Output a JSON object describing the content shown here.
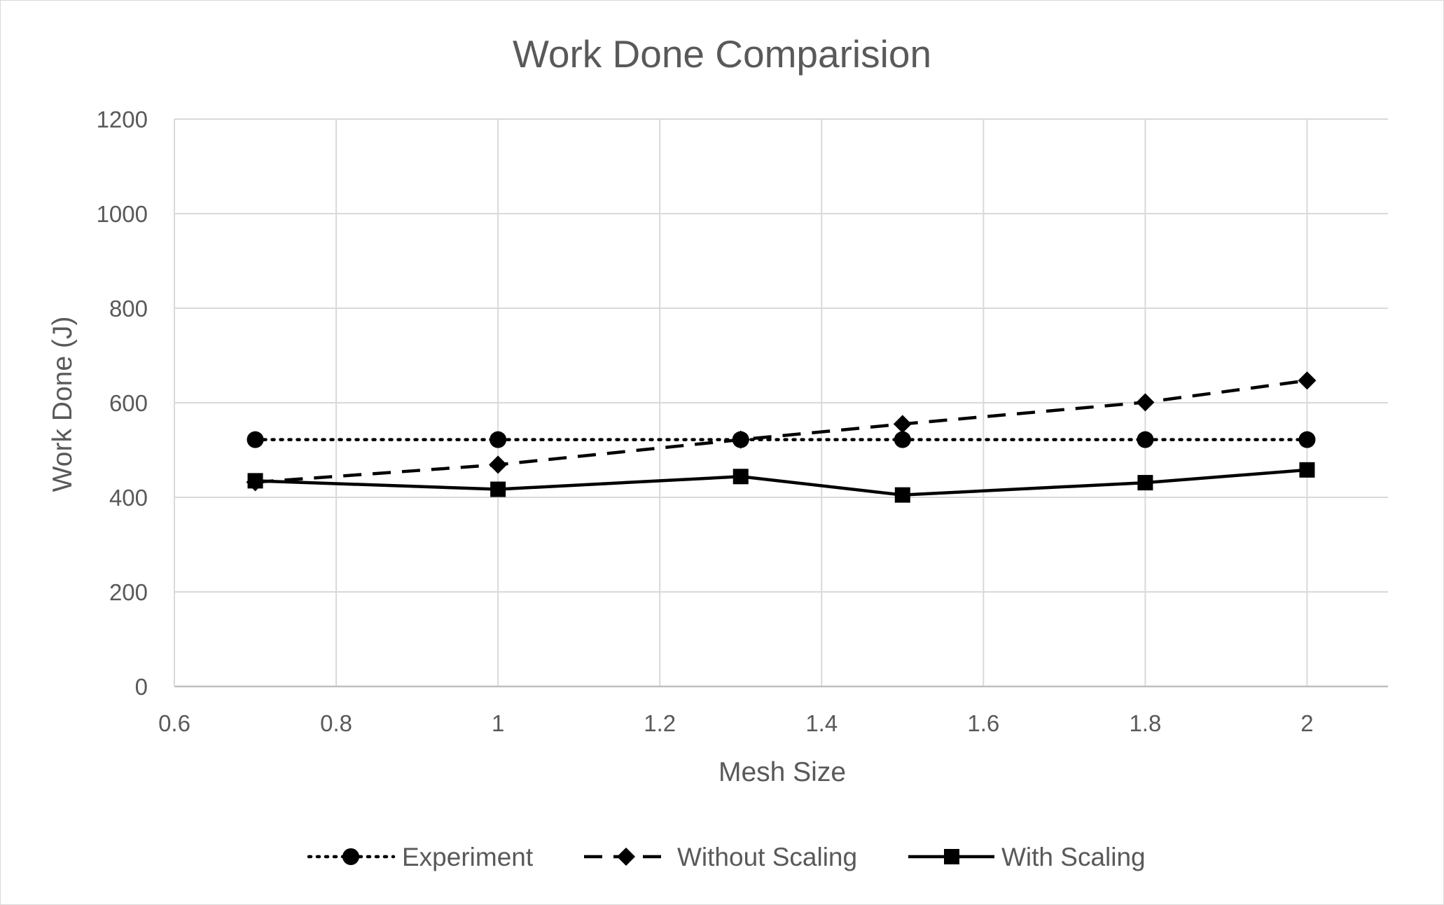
{
  "chart_data": {
    "type": "scatter",
    "title": "Work Done Comparision",
    "xlabel": "Mesh Size",
    "ylabel": "Work Done (J)",
    "xlim": [
      0.6,
      2.1
    ],
    "ylim": [
      0,
      1200
    ],
    "x_ticks": [
      0.6,
      0.8,
      1,
      1.2,
      1.4,
      1.6,
      1.8,
      2
    ],
    "y_ticks": [
      0,
      200,
      400,
      600,
      800,
      1000,
      1200
    ],
    "grid": true,
    "legend_position": "bottom",
    "series": [
      {
        "name": "Experiment",
        "line_style": "dotted",
        "marker": "circle",
        "color": "#000000",
        "x": [
          0.7,
          1.0,
          1.3,
          1.5,
          1.8,
          2.0
        ],
        "y": [
          522,
          522,
          522,
          522,
          522,
          522
        ]
      },
      {
        "name": "Without Scaling",
        "line_style": "dashed",
        "marker": "diamond",
        "color": "#000000",
        "x": [
          0.7,
          1.0,
          1.3,
          1.5,
          1.8,
          2.0
        ],
        "y": [
          432,
          469,
          522,
          555,
          601,
          647
        ]
      },
      {
        "name": "With Scaling",
        "line_style": "solid",
        "marker": "square",
        "color": "#000000",
        "x": [
          0.7,
          1.0,
          1.3,
          1.5,
          1.8,
          2.0
        ],
        "y": [
          435,
          417,
          444,
          405,
          431,
          458
        ]
      }
    ]
  }
}
